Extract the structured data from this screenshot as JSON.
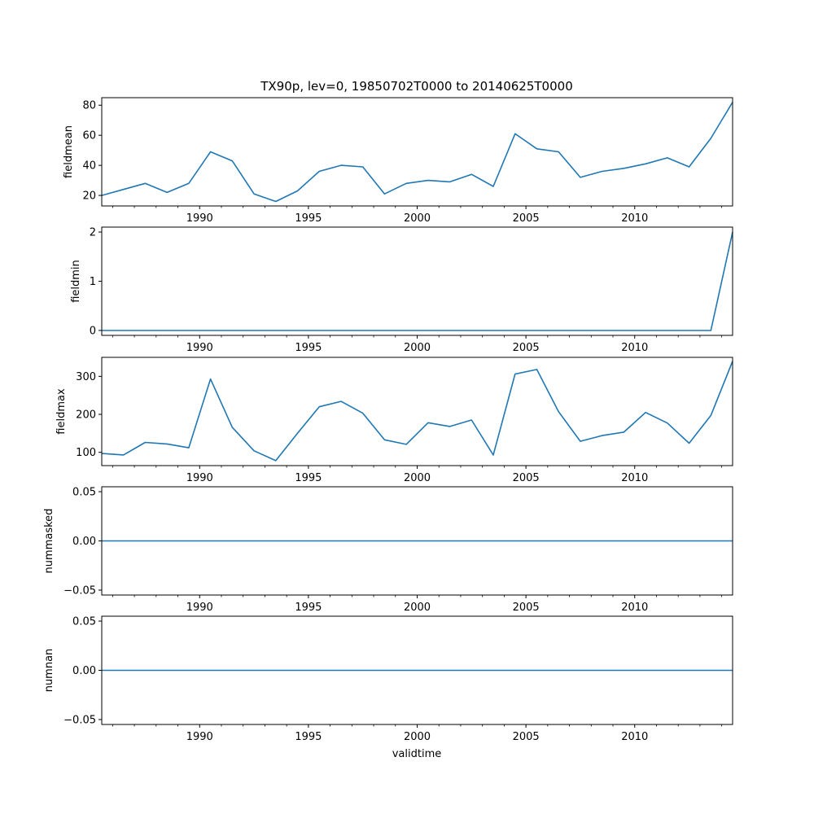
{
  "chart_data": {
    "type": "line",
    "title": "TX90p, lev=0, 19850702T0000 to 20140625T0000",
    "xlabel": "validtime",
    "xlim": [
      1985.5,
      2014.5
    ],
    "x_major_ticks": [
      1990,
      1995,
      2000,
      2005,
      2010
    ],
    "x_tick_labels": [
      "1990",
      "1995",
      "2000",
      "2005",
      "2010"
    ],
    "x": [
      1985.5,
      1986.5,
      1987.5,
      1988.5,
      1989.5,
      1990.5,
      1991.5,
      1992.5,
      1993.5,
      1994.5,
      1995.5,
      1996.5,
      1997.5,
      1998.5,
      1999.5,
      2000.5,
      2001.5,
      2002.5,
      2003.5,
      2004.5,
      2005.5,
      2006.5,
      2007.5,
      2008.5,
      2009.5,
      2010.5,
      2011.5,
      2012.5,
      2013.5,
      2014.5
    ],
    "line_color": "#1f77b4",
    "grid": false,
    "panels": [
      {
        "ylabel": "fieldmean",
        "ylim": [
          13,
          85
        ],
        "yticks": [
          20,
          40,
          60,
          80
        ],
        "ytick_labels": [
          "20",
          "40",
          "60",
          "80"
        ],
        "values": [
          20,
          24,
          28,
          22,
          28,
          49,
          43,
          21,
          16,
          23,
          36,
          40,
          39,
          21,
          28,
          30,
          29,
          34,
          26,
          61,
          51,
          49,
          32,
          36,
          38,
          41,
          45,
          39,
          58,
          82
        ]
      },
      {
        "ylabel": "fieldmin",
        "ylim": [
          -0.1,
          2.1
        ],
        "yticks": [
          0,
          1,
          2
        ],
        "ytick_labels": [
          "0",
          "1",
          "2"
        ],
        "values": [
          0,
          0,
          0,
          0,
          0,
          0,
          0,
          0,
          0,
          0,
          0,
          0,
          0,
          0,
          0,
          0,
          0,
          0,
          0,
          0,
          0,
          0,
          0,
          0,
          0,
          0,
          0,
          0,
          0,
          2
        ]
      },
      {
        "ylabel": "fieldmax",
        "ylim": [
          65,
          350
        ],
        "yticks": [
          100,
          200,
          300
        ],
        "ytick_labels": [
          "100",
          "200",
          "300"
        ],
        "values": [
          97,
          93,
          126,
          122,
          112,
          293,
          166,
          104,
          78,
          150,
          220,
          234,
          203,
          133,
          121,
          178,
          168,
          185,
          93,
          306,
          318,
          207,
          129,
          144,
          153,
          205,
          177,
          124,
          197,
          340
        ]
      },
      {
        "ylabel": "nummasked",
        "ylim": [
          -0.055,
          0.055
        ],
        "yticks": [
          -0.05,
          0,
          0.05
        ],
        "ytick_labels": [
          "−0.05",
          "0.00",
          "0.05"
        ],
        "values": [
          0,
          0,
          0,
          0,
          0,
          0,
          0,
          0,
          0,
          0,
          0,
          0,
          0,
          0,
          0,
          0,
          0,
          0,
          0,
          0,
          0,
          0,
          0,
          0,
          0,
          0,
          0,
          0,
          0,
          0
        ]
      },
      {
        "ylabel": "numnan",
        "ylim": [
          -0.055,
          0.055
        ],
        "yticks": [
          -0.05,
          0,
          0.05
        ],
        "ytick_labels": [
          "−0.05",
          "0.00",
          "0.05"
        ],
        "values": [
          0,
          0,
          0,
          0,
          0,
          0,
          0,
          0,
          0,
          0,
          0,
          0,
          0,
          0,
          0,
          0,
          0,
          0,
          0,
          0,
          0,
          0,
          0,
          0,
          0,
          0,
          0,
          0,
          0,
          0
        ]
      }
    ]
  }
}
